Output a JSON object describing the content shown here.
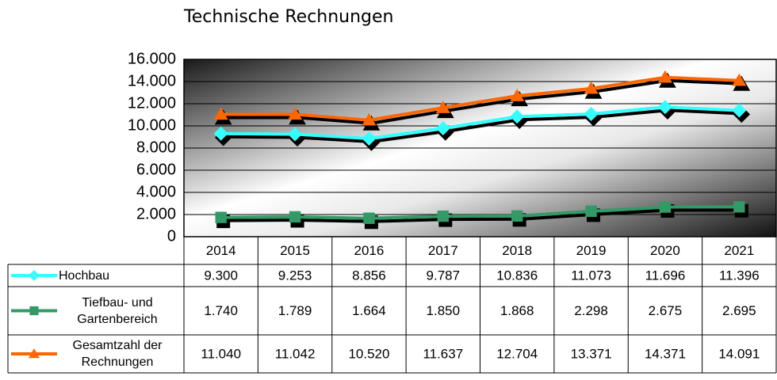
{
  "chart_data": {
    "type": "line",
    "title": "Technische Rechnungen",
    "categories": [
      "2014",
      "2015",
      "2016",
      "2017",
      "2018",
      "2019",
      "2020",
      "2021"
    ],
    "series": [
      {
        "name": "Hochbau",
        "color": "#33ffff",
        "marker": "diamond",
        "values": [
          9300,
          9253,
          8856,
          9787,
          10836,
          11073,
          11696,
          11396
        ],
        "value_labels": [
          "9.300",
          "9.253",
          "8.856",
          "9.787",
          "10.836",
          "11.073",
          "11.696",
          "11.396"
        ]
      },
      {
        "name": "Tiefbau- und Gartenbereich",
        "color": "#339966",
        "marker": "square",
        "values": [
          1740,
          1789,
          1664,
          1850,
          1868,
          2298,
          2675,
          2695
        ],
        "value_labels": [
          "1.740",
          "1.789",
          "1.664",
          "1.850",
          "1.868",
          "2.298",
          "2.675",
          "2.695"
        ]
      },
      {
        "name": "Gesamtzahl der Rechnungen",
        "color": "#ff6600",
        "marker": "triangle",
        "values": [
          11040,
          11042,
          10520,
          11637,
          12704,
          13371,
          14371,
          14091
        ],
        "value_labels": [
          "11.040",
          "11.042",
          "10.520",
          "11.637",
          "12.704",
          "13.371",
          "14.371",
          "14.091"
        ]
      }
    ],
    "ylim": [
      0,
      16000
    ],
    "yticks": [
      0,
      {
        "value": 2000,
        "label": "2.000"
      },
      {
        "value": 4000,
        "label": "4.000"
      },
      {
        "value": 6000,
        "label": "6.000"
      },
      {
        "value": 8000,
        "label": "8.000"
      },
      {
        "value": 10000,
        "label": "10.000"
      },
      {
        "value": 12000,
        "label": "12.000"
      },
      {
        "value": 14000,
        "label": "14.000"
      },
      {
        "value": 16000,
        "label": "16.000"
      }
    ],
    "grid": true,
    "data_table": true
  }
}
